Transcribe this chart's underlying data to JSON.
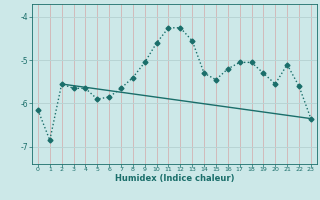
{
  "xlabel": "Humidex (Indice chaleur)",
  "ylabel": "",
  "bg_color": "#cce8e8",
  "line_color": "#1a6e6a",
  "xlim": [
    -0.5,
    23.5
  ],
  "ylim": [
    -7.4,
    -3.7
  ],
  "yticks": [
    -7,
    -6,
    -5,
    -4
  ],
  "xticks": [
    0,
    1,
    2,
    3,
    4,
    5,
    6,
    7,
    8,
    9,
    10,
    11,
    12,
    13,
    14,
    15,
    16,
    17,
    18,
    19,
    20,
    21,
    22,
    23
  ],
  "curve_x": [
    0,
    1,
    2,
    3,
    4,
    5,
    6,
    7,
    8,
    9,
    10,
    11,
    12,
    13,
    14,
    15,
    16,
    17,
    18,
    19,
    20,
    21,
    22,
    23
  ],
  "curve_y": [
    -6.15,
    -6.85,
    -5.55,
    -5.65,
    -5.65,
    -5.9,
    -5.85,
    -5.65,
    -5.4,
    -5.05,
    -4.6,
    -4.25,
    -4.25,
    -4.55,
    -5.3,
    -5.45,
    -5.2,
    -5.05,
    -5.05,
    -5.3,
    -5.55,
    -5.1,
    -5.6,
    -6.35
  ],
  "trend_x": [
    2,
    23
  ],
  "trend_y": [
    -5.55,
    -6.35
  ],
  "vgrid_color": "#d4a8a8",
  "hgrid_color": "#b8d4d4"
}
